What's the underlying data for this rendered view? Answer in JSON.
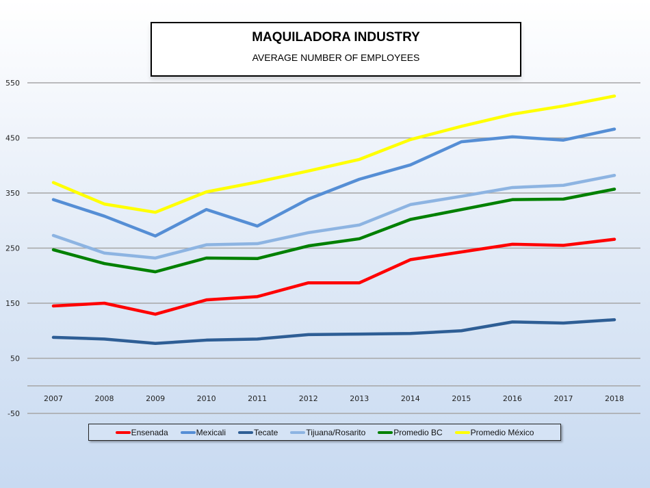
{
  "chart_data": {
    "type": "line",
    "title": "MAQUILADORA INDUSTRY",
    "subtitle": "AVERAGE NUMBER OF EMPLOYEES",
    "xlabel": "",
    "ylabel": "",
    "ylim": [
      -50,
      550
    ],
    "yticks": [
      550,
      450,
      350,
      250,
      150,
      50,
      -50
    ],
    "grid": true,
    "legend_position": "bottom",
    "categories": [
      "2007",
      "2008",
      "2009",
      "2010",
      "2011",
      "2012",
      "2013",
      "2014",
      "2015",
      "2016",
      "2017",
      "2018"
    ],
    "series": [
      {
        "name": "Ensenada",
        "color": "#ff0000",
        "values": [
          145,
          150,
          130,
          156,
          162,
          187,
          187,
          229,
          243,
          257,
          255,
          266
        ]
      },
      {
        "name": "Mexicali",
        "color": "#558ed5",
        "values": [
          338,
          308,
          272,
          320,
          290,
          339,
          375,
          401,
          443,
          452,
          446,
          466
        ]
      },
      {
        "name": "Tecate",
        "color": "#2e5e95",
        "values": [
          88,
          85,
          77,
          83,
          85,
          93,
          94,
          95,
          100,
          116,
          114,
          120
        ]
      },
      {
        "name": "Tijuana/Rosarito",
        "color": "#8db4e2",
        "values": [
          273,
          241,
          232,
          256,
          258,
          278,
          292,
          329,
          344,
          360,
          364,
          382
        ]
      },
      {
        "name": "Promedio BC",
        "color": "#008000",
        "values": [
          247,
          222,
          207,
          232,
          231,
          254,
          267,
          302,
          320,
          338,
          339,
          357
        ]
      },
      {
        "name": "Promedio México",
        "color": "#ffff00",
        "values": [
          369,
          330,
          315,
          352,
          370,
          390,
          411,
          447,
          471,
          493,
          508,
          526
        ]
      }
    ]
  }
}
